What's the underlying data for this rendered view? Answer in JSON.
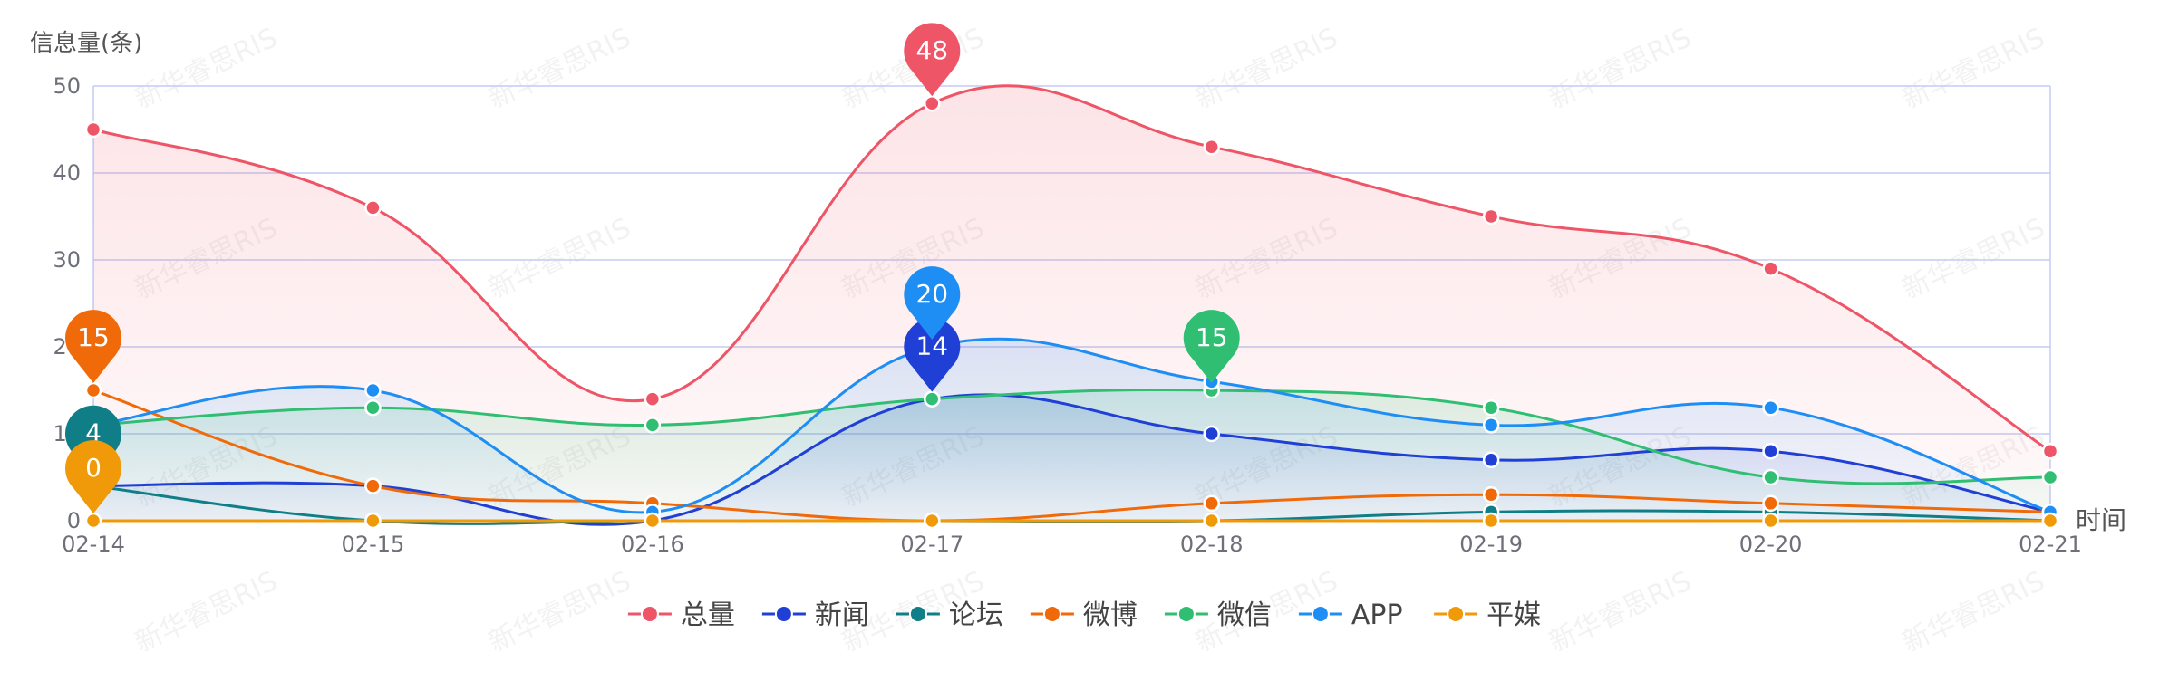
{
  "watermark_text": "新华睿思RIS",
  "chart_data": {
    "type": "line",
    "title": "",
    "ylabel": "信息量(条)",
    "xlabel": "时间",
    "categories": [
      "02-14",
      "02-15",
      "02-16",
      "02-17",
      "02-18",
      "02-19",
      "02-20",
      "02-21"
    ],
    "ylim": [
      0,
      50
    ],
    "yticks": [
      0,
      10,
      20,
      30,
      40,
      50
    ],
    "ytick_labels": [
      "0",
      "10",
      "20",
      "30",
      "40",
      "50"
    ],
    "grid": true,
    "legend_position": "bottom-center",
    "series": [
      {
        "name": "总量",
        "color": "#EE5567",
        "values": [
          45,
          36,
          14,
          48,
          43,
          35,
          29,
          8
        ],
        "area": true,
        "max_marker": {
          "label": "48",
          "index": 3
        }
      },
      {
        "name": "新闻",
        "color": "#1F3FD5",
        "values": [
          4,
          4,
          0,
          14,
          10,
          7,
          8,
          1
        ],
        "area": true,
        "max_marker": {
          "label": "14",
          "index": 3
        }
      },
      {
        "name": "论坛",
        "color": "#0F7E86",
        "values": [
          4,
          0,
          0,
          0,
          0,
          1,
          1,
          0
        ],
        "area": false,
        "max_marker": {
          "label": "4",
          "index": 0
        }
      },
      {
        "name": "微博",
        "color": "#F06A0A",
        "values": [
          15,
          4,
          2,
          0,
          2,
          3,
          2,
          1
        ],
        "area": false,
        "max_marker": {
          "label": "15",
          "index": 0
        }
      },
      {
        "name": "微信",
        "color": "#2FBE72",
        "values": [
          11,
          13,
          11,
          14,
          15,
          13,
          5,
          5
        ],
        "area": true,
        "max_marker": {
          "label": "15",
          "index": 4
        }
      },
      {
        "name": "APP",
        "color": "#1E8EF5",
        "values": [
          11,
          15,
          1,
          20,
          16,
          11,
          13,
          1
        ],
        "area": true,
        "max_marker": {
          "label": "20",
          "index": 3
        }
      },
      {
        "name": "平媒",
        "color": "#F09A0A",
        "values": [
          0,
          0,
          0,
          0,
          0,
          0,
          0,
          0
        ],
        "area": false,
        "max_marker": {
          "label": "0",
          "index": 0
        }
      }
    ]
  }
}
